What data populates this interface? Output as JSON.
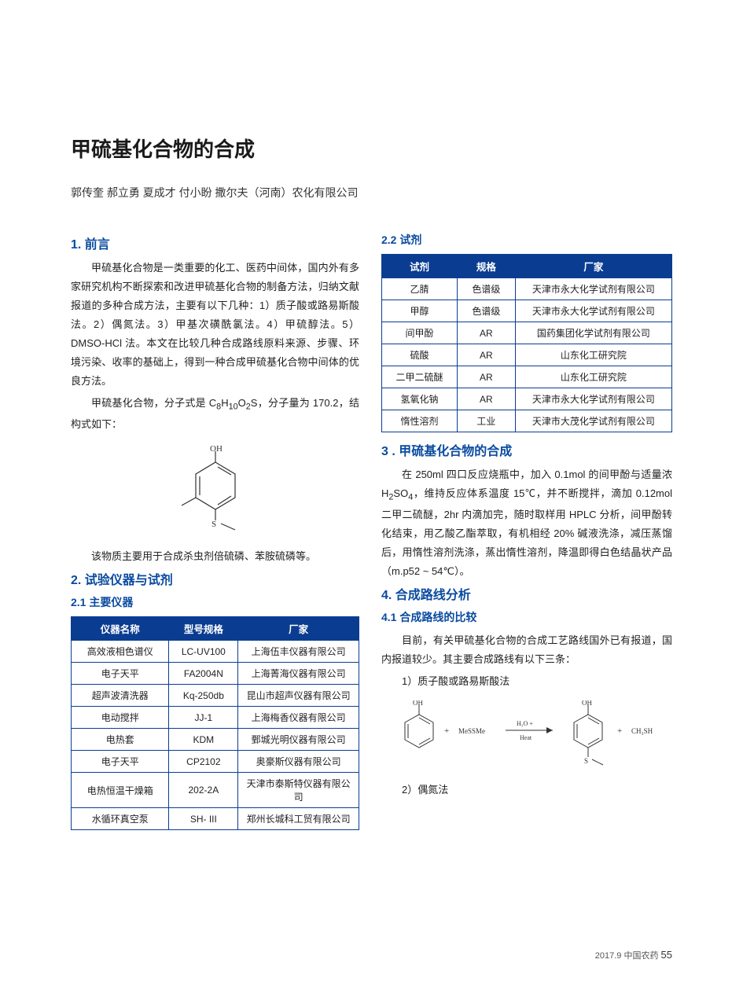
{
  "page": {
    "title": "甲硫基化合物的合成",
    "authors": "郭传奎 郝立勇 夏成才 付小盼  撒尔夫（河南）农化有限公司",
    "footer": "2017.9 中国农药",
    "pagenum": "55"
  },
  "sec1": {
    "heading": "1. 前言",
    "p1": "甲硫基化合物是一类重要的化工、医药中间体，国内外有多家研究机构不断探索和改进甲硫基化合物的制备方法，归纳文献报道的多种合成方法，主要有以下几种：1）质子酸或路易斯酸法。2）偶氮法。3）甲基次磺酰氯法。4）甲硫醇法。5）DMSO-HCl 法。本文在比较几种合成路线原料来源、步骤、环境污染、收率的基础上，得到一种合成甲硫基化合物中间体的优良方法。",
    "p2a": "甲硫基化合物，分子式是 C",
    "p2sub1": "8",
    "p2b": "H",
    "p2sub2": "10",
    "p2c": "O",
    "p2sub3": "2",
    "p2d": "S，分子量为 170.2，结构式如下：",
    "structure_labels": {
      "oh": "OH",
      "s": "S"
    },
    "p3": "该物质主要用于合成杀虫剂倍硫磷、苯胺硫磷等。"
  },
  "sec2": {
    "heading": "2. 试验仪器与试剂",
    "sub1_heading": "2.1 主要仪器",
    "sub2_heading": "2.2 试剂"
  },
  "table1": {
    "columns": [
      "仪器名称",
      "型号规格",
      "厂家"
    ],
    "rows": [
      [
        "高效液相色谱仪",
        "LC-UV100",
        "上海伍丰仪器有限公司"
      ],
      [
        "电子天平",
        "FA2004N",
        "上海菁海仪器有限公司"
      ],
      [
        "超声波清洗器",
        "Kq-250db",
        "昆山市超声仪器有限公司"
      ],
      [
        "电动搅拌",
        "JJ-1",
        "上海梅香仪器有限公司"
      ],
      [
        "电热套",
        "KDM",
        "鄄城光明仪器有限公司"
      ],
      [
        "电子天平",
        "CP2102",
        "奥豪斯仪器有限公司"
      ],
      [
        "电热恒温干燥箱",
        "202-2A",
        "天津市泰斯特仪器有限公司"
      ],
      [
        "水循环真空泵",
        "SH- III",
        "郑州长城科工贸有限公司"
      ]
    ],
    "col_widths": [
      "34%",
      "24%",
      "42%"
    ]
  },
  "table2": {
    "columns": [
      "试剂",
      "规格",
      "厂家"
    ],
    "rows": [
      [
        "乙腈",
        "色谱级",
        "天津市永大化学试剂有限公司"
      ],
      [
        "甲醇",
        "色谱级",
        "天津市永大化学试剂有限公司"
      ],
      [
        "间甲酚",
        "AR",
        "国药集团化学试剂有限公司"
      ],
      [
        "硫酸",
        "AR",
        "山东化工研究院"
      ],
      [
        "二甲二硫醚",
        "AR",
        "山东化工研究院"
      ],
      [
        "氢氧化钠",
        "AR",
        "天津市永大化学试剂有限公司"
      ],
      [
        "惰性溶剂",
        "工业",
        "天津市大茂化学试剂有限公司"
      ]
    ],
    "col_widths": [
      "26%",
      "20%",
      "54%"
    ]
  },
  "sec3": {
    "heading": "3 . 甲硫基化合物的合成",
    "p1a": "在 250ml 四口反应烧瓶中，加入 0.1mol 的间甲酚与适量浓 H",
    "p1sub1": "2",
    "p1b": "SO",
    "p1sub2": "4",
    "p1c": "，维持反应体系温度 15℃，并不断搅拌，滴加 0.12mol 二甲二硫醚，2hr 内滴加完，随时取样用 HPLC 分析，间甲酚转化结束，用乙酸乙酯萃取，有机相经 20% 碱液洗涤，减压蒸馏后，用惰性溶剂洗涤，蒸出惰性溶剂，降温即得白色结晶状产品（m.p52 ~ 54℃）。"
  },
  "sec4": {
    "heading": "4. 合成路线分析",
    "sub1_heading": "4.1 合成路线的比较",
    "p1": "目前，有关甲硫基化合物的合成工艺路线国外已有报道，国内报道较少。其主要合成路线有以下三条：",
    "item1": "1）质子酸或路易斯酸法",
    "item2": "2）偶氮法"
  },
  "reaction": {
    "reagent_plus": "+",
    "messme": "MeSSMe",
    "cond_top": "H₃O +",
    "cond_bot": "Heat",
    "byproduct": "CH₃SH",
    "oh": "OH",
    "s": "S"
  },
  "colors": {
    "heading": "#0a4ba0",
    "table_header_bg": "#0a3d91",
    "table_border": "#0a3d91",
    "text": "#222222",
    "bg": "#ffffff"
  }
}
